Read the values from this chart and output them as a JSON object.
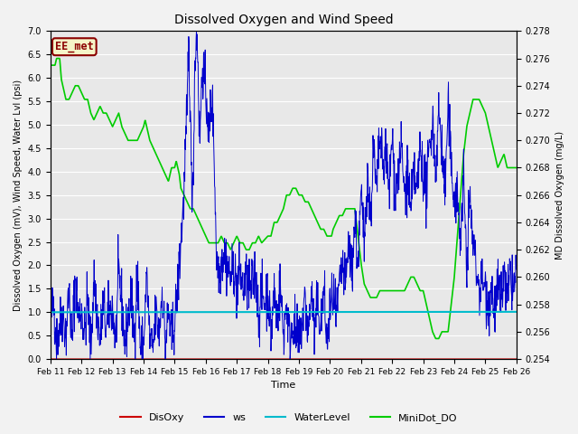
{
  "title": "Dissolved Oxygen and Wind Speed",
  "xlabel": "Time",
  "ylabel_left": "Dissolved Oxygen (mV), Wind Speed, Water Lvl (psi)",
  "ylabel_right": "MD Dissolved Oxygen (mg/L)",
  "ylim_left": [
    0.0,
    7.0
  ],
  "ylim_right": [
    0.254,
    0.278
  ],
  "yticks_left": [
    0.0,
    0.5,
    1.0,
    1.5,
    2.0,
    2.5,
    3.0,
    3.5,
    4.0,
    4.5,
    5.0,
    5.5,
    6.0,
    6.5,
    7.0
  ],
  "yticks_right": [
    0.254,
    0.256,
    0.258,
    0.26,
    0.262,
    0.264,
    0.266,
    0.268,
    0.27,
    0.272,
    0.274,
    0.276,
    0.278
  ],
  "xtick_labels": [
    "Feb 11",
    "Feb 12",
    "Feb 13",
    "Feb 14",
    "Feb 15",
    "Feb 16",
    "Feb 17",
    "Feb 18",
    "Feb 19",
    "Feb 20",
    "Feb 21",
    "Feb 22",
    "Feb 23",
    "Feb 24",
    "Feb 25",
    "Feb 26"
  ],
  "colors": {
    "DisOxy": "#cc0000",
    "ws": "#0000cc",
    "WaterLevel": "#00bbcc",
    "MiniDot_DO": "#00cc00"
  },
  "legend_label": "EE_met",
  "background_color": "#e8e8e8",
  "grid_color": "#ffffff",
  "fig_bg": "#f2f2f2",
  "EEmet_facecolor": "#f5f5c8",
  "EEmet_edgecolor": "#8B0000",
  "EEmet_textcolor": "#8B0000"
}
